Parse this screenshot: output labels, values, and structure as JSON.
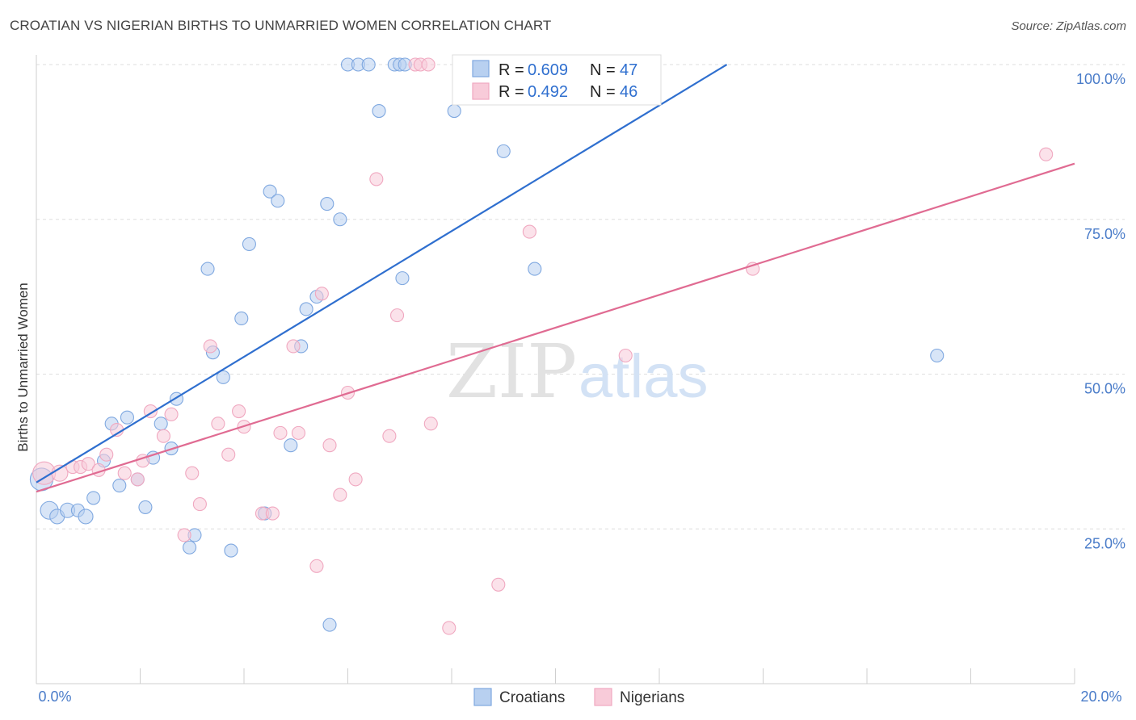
{
  "title": "CROATIAN VS NIGERIAN BIRTHS TO UNMARRIED WOMEN CORRELATION CHART",
  "source": "Source: ZipAtlas.com",
  "watermark": {
    "zip": "ZIP",
    "atlas": "atlas"
  },
  "legend": {
    "r_label": "R =",
    "n_label": "N =",
    "croatians": {
      "r": "0.609",
      "n": "47"
    },
    "nigerians": {
      "r": "0.492",
      "n": "46"
    }
  },
  "chart_data": {
    "type": "scatter",
    "title": "CROATIAN VS NIGERIAN BIRTHS TO UNMARRIED WOMEN CORRELATION CHART",
    "xlabel": "",
    "ylabel": "Births to Unmarried Women",
    "xlim": [
      0,
      20
    ],
    "ylim": [
      0,
      100
    ],
    "x_tick_labels": [
      "0.0%",
      "20.0%"
    ],
    "y_tick_labels": [
      "25.0%",
      "50.0%",
      "75.0%",
      "100.0%"
    ],
    "y_ticks": [
      25,
      50,
      75,
      100
    ],
    "grid": true,
    "legend_position": "top",
    "series": [
      {
        "name": "Croatians",
        "color": "#7fa8e0",
        "fill": "#b8d0f0",
        "line_color": "#2f6fcf",
        "trend": {
          "x": [
            0.0,
            13.3
          ],
          "y": [
            32.5,
            100.0
          ]
        },
        "points": [
          {
            "x": 0.1,
            "y": 33.0,
            "s": 14
          },
          {
            "x": 0.25,
            "y": 28.0,
            "s": 11
          },
          {
            "x": 0.4,
            "y": 27.0,
            "s": 9
          },
          {
            "x": 0.6,
            "y": 28.0,
            "s": 9
          },
          {
            "x": 0.8,
            "y": 28.0,
            "s": 8
          },
          {
            "x": 0.95,
            "y": 27.0,
            "s": 9
          },
          {
            "x": 1.1,
            "y": 30.0,
            "s": 8
          },
          {
            "x": 1.3,
            "y": 36.0,
            "s": 8
          },
          {
            "x": 1.45,
            "y": 42.0,
            "s": 8
          },
          {
            "x": 1.6,
            "y": 32.0,
            "s": 8
          },
          {
            "x": 1.75,
            "y": 43.0,
            "s": 8
          },
          {
            "x": 1.95,
            "y": 33.0,
            "s": 8
          },
          {
            "x": 2.1,
            "y": 28.5,
            "s": 8
          },
          {
            "x": 2.25,
            "y": 36.5,
            "s": 8
          },
          {
            "x": 2.4,
            "y": 42.0,
            "s": 8
          },
          {
            "x": 2.6,
            "y": 38.0,
            "s": 8
          },
          {
            "x": 2.7,
            "y": 46.0,
            "s": 8
          },
          {
            "x": 2.95,
            "y": 22.0,
            "s": 8
          },
          {
            "x": 3.05,
            "y": 24.0,
            "s": 8
          },
          {
            "x": 3.3,
            "y": 67.0,
            "s": 8
          },
          {
            "x": 3.4,
            "y": 53.5,
            "s": 8
          },
          {
            "x": 3.6,
            "y": 49.5,
            "s": 8
          },
          {
            "x": 3.75,
            "y": 21.5,
            "s": 8
          },
          {
            "x": 3.95,
            "y": 59.0,
            "s": 8
          },
          {
            "x": 4.1,
            "y": 71.0,
            "s": 8
          },
          {
            "x": 4.4,
            "y": 27.5,
            "s": 8
          },
          {
            "x": 4.5,
            "y": 79.5,
            "s": 8
          },
          {
            "x": 4.65,
            "y": 78.0,
            "s": 8
          },
          {
            "x": 4.9,
            "y": 38.5,
            "s": 8
          },
          {
            "x": 5.1,
            "y": 54.5,
            "s": 8
          },
          {
            "x": 5.2,
            "y": 60.5,
            "s": 8
          },
          {
            "x": 5.4,
            "y": 62.5,
            "s": 8
          },
          {
            "x": 5.6,
            "y": 77.5,
            "s": 8
          },
          {
            "x": 5.65,
            "y": 9.5,
            "s": 8
          },
          {
            "x": 5.85,
            "y": 75.0,
            "s": 8
          },
          {
            "x": 6.0,
            "y": 100.0,
            "s": 8
          },
          {
            "x": 6.2,
            "y": 100.0,
            "s": 8
          },
          {
            "x": 6.4,
            "y": 100.0,
            "s": 8
          },
          {
            "x": 6.6,
            "y": 92.5,
            "s": 8
          },
          {
            "x": 6.9,
            "y": 100.0,
            "s": 8
          },
          {
            "x": 7.0,
            "y": 100.0,
            "s": 8
          },
          {
            "x": 7.1,
            "y": 100.0,
            "s": 8
          },
          {
            "x": 7.05,
            "y": 65.5,
            "s": 8
          },
          {
            "x": 8.05,
            "y": 92.5,
            "s": 8
          },
          {
            "x": 9.0,
            "y": 86.0,
            "s": 8
          },
          {
            "x": 9.6,
            "y": 67.0,
            "s": 8
          },
          {
            "x": 17.35,
            "y": 53.0,
            "s": 8
          }
        ]
      },
      {
        "name": "Nigerians",
        "color": "#f0a8c0",
        "fill": "#f8cbd9",
        "line_color": "#e06b92",
        "trend": {
          "x": [
            0.0,
            20.0
          ],
          "y": [
            31.0,
            84.0
          ]
        },
        "points": [
          {
            "x": 0.15,
            "y": 34.0,
            "s": 14
          },
          {
            "x": 0.45,
            "y": 34.0,
            "s": 10
          },
          {
            "x": 0.7,
            "y": 35.0,
            "s": 8
          },
          {
            "x": 0.85,
            "y": 35.0,
            "s": 8
          },
          {
            "x": 1.0,
            "y": 35.5,
            "s": 8
          },
          {
            "x": 1.2,
            "y": 34.5,
            "s": 8
          },
          {
            "x": 1.35,
            "y": 37.0,
            "s": 8
          },
          {
            "x": 1.55,
            "y": 41.0,
            "s": 8
          },
          {
            "x": 1.7,
            "y": 34.0,
            "s": 8
          },
          {
            "x": 1.95,
            "y": 33.0,
            "s": 8
          },
          {
            "x": 2.05,
            "y": 36.0,
            "s": 8
          },
          {
            "x": 2.2,
            "y": 44.0,
            "s": 8
          },
          {
            "x": 2.45,
            "y": 40.0,
            "s": 8
          },
          {
            "x": 2.6,
            "y": 43.5,
            "s": 8
          },
          {
            "x": 2.85,
            "y": 24.0,
            "s": 8
          },
          {
            "x": 3.0,
            "y": 34.0,
            "s": 8
          },
          {
            "x": 3.15,
            "y": 29.0,
            "s": 8
          },
          {
            "x": 3.35,
            "y": 54.5,
            "s": 8
          },
          {
            "x": 3.5,
            "y": 42.0,
            "s": 8
          },
          {
            "x": 3.7,
            "y": 37.0,
            "s": 8
          },
          {
            "x": 3.9,
            "y": 44.0,
            "s": 8
          },
          {
            "x": 4.0,
            "y": 41.5,
            "s": 8
          },
          {
            "x": 4.35,
            "y": 27.5,
            "s": 8
          },
          {
            "x": 4.55,
            "y": 27.5,
            "s": 8
          },
          {
            "x": 4.7,
            "y": 40.5,
            "s": 8
          },
          {
            "x": 4.95,
            "y": 54.5,
            "s": 8
          },
          {
            "x": 5.05,
            "y": 40.5,
            "s": 8
          },
          {
            "x": 5.4,
            "y": 19.0,
            "s": 8
          },
          {
            "x": 5.5,
            "y": 63.0,
            "s": 8
          },
          {
            "x": 5.65,
            "y": 38.5,
            "s": 8
          },
          {
            "x": 5.85,
            "y": 30.5,
            "s": 8
          },
          {
            "x": 6.0,
            "y": 47.0,
            "s": 8
          },
          {
            "x": 6.15,
            "y": 33.0,
            "s": 8
          },
          {
            "x": 6.55,
            "y": 81.5,
            "s": 8
          },
          {
            "x": 6.8,
            "y": 40.0,
            "s": 8
          },
          {
            "x": 6.95,
            "y": 59.5,
            "s": 8
          },
          {
            "x": 7.3,
            "y": 100.0,
            "s": 8
          },
          {
            "x": 7.4,
            "y": 100.0,
            "s": 8
          },
          {
            "x": 7.55,
            "y": 100.0,
            "s": 8
          },
          {
            "x": 7.6,
            "y": 42.0,
            "s": 8
          },
          {
            "x": 7.95,
            "y": 9.0,
            "s": 8
          },
          {
            "x": 8.9,
            "y": 16.0,
            "s": 8
          },
          {
            "x": 9.5,
            "y": 73.0,
            "s": 8
          },
          {
            "x": 11.35,
            "y": 53.0,
            "s": 8
          },
          {
            "x": 13.8,
            "y": 67.0,
            "s": 8
          },
          {
            "x": 19.45,
            "y": 85.5,
            "s": 8
          }
        ]
      }
    ]
  }
}
